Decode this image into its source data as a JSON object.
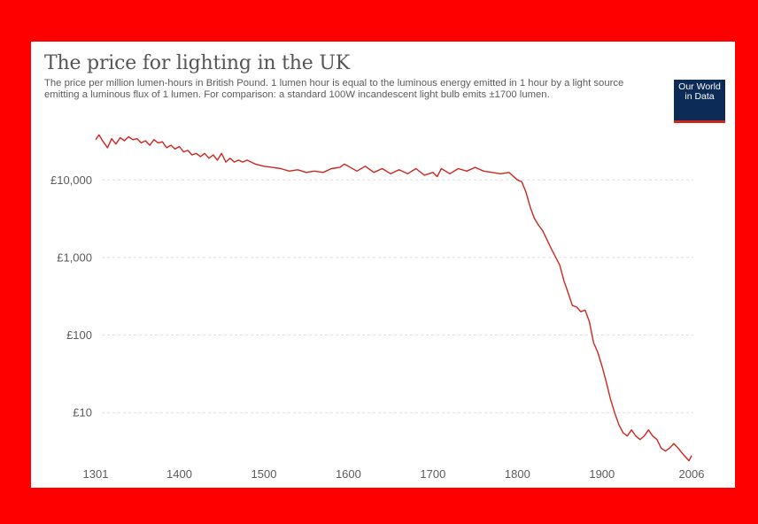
{
  "logo": {
    "line1": "Our World",
    "line2": "in Data"
  },
  "chart_data": {
    "type": "line",
    "title": "The price for lighting in the UK",
    "subtitle": "The price per million lumen-hours in British Pound. 1 lumen hour is equal to the luminous energy emitted in 1 hour by a light source emitting a luminous flux of 1 lumen. For comparison: a standard 100W incandescent light bulb emits ±1700 lumen.",
    "xlabel": "",
    "ylabel": "",
    "y_scale": "log",
    "xlim": [
      1301,
      2006
    ],
    "ylim": [
      2.5,
      50000
    ],
    "x_ticks": [
      1301,
      1400,
      1500,
      1600,
      1700,
      1800,
      1900,
      2006
    ],
    "y_ticks": [
      {
        "value": 10,
        "label": "£10"
      },
      {
        "value": 100,
        "label": "£100"
      },
      {
        "value": 1000,
        "label": "£1,000"
      },
      {
        "value": 10000,
        "label": "£10,000"
      }
    ],
    "grid": "horizontal-dashed",
    "line_color": "#ce261e",
    "series": [
      {
        "name": "",
        "x": [
          1301,
          1305,
          1310,
          1315,
          1320,
          1325,
          1330,
          1335,
          1340,
          1345,
          1350,
          1355,
          1360,
          1365,
          1370,
          1375,
          1380,
          1385,
          1390,
          1395,
          1400,
          1405,
          1410,
          1415,
          1420,
          1425,
          1430,
          1435,
          1440,
          1445,
          1450,
          1455,
          1460,
          1465,
          1470,
          1475,
          1480,
          1490,
          1500,
          1510,
          1520,
          1530,
          1540,
          1550,
          1560,
          1570,
          1580,
          1590,
          1595,
          1600,
          1610,
          1620,
          1630,
          1640,
          1650,
          1660,
          1670,
          1680,
          1690,
          1700,
          1705,
          1710,
          1720,
          1730,
          1740,
          1750,
          1760,
          1770,
          1780,
          1790,
          1800,
          1805,
          1810,
          1815,
          1820,
          1825,
          1830,
          1840,
          1850,
          1855,
          1860,
          1865,
          1870,
          1875,
          1880,
          1885,
          1890,
          1895,
          1900,
          1905,
          1910,
          1915,
          1920,
          1925,
          1930,
          1935,
          1940,
          1945,
          1950,
          1955,
          1960,
          1965,
          1970,
          1975,
          1980,
          1985,
          1990,
          1995,
          2000,
          2003,
          2006
        ],
        "values": [
          33000,
          38000,
          31000,
          26000,
          34000,
          29000,
          35000,
          32000,
          36000,
          33000,
          34000,
          30000,
          32000,
          28000,
          33000,
          30000,
          31000,
          26000,
          28000,
          25000,
          27000,
          23000,
          24000,
          21000,
          22000,
          20000,
          22000,
          19000,
          21000,
          18000,
          22000,
          17000,
          19000,
          17000,
          18000,
          17000,
          18000,
          16000,
          15000,
          14500,
          14000,
          13000,
          13500,
          12500,
          13000,
          12500,
          14000,
          14500,
          16000,
          15000,
          13000,
          15000,
          12500,
          14000,
          12000,
          13500,
          12000,
          14000,
          11500,
          12500,
          11000,
          14000,
          12000,
          14000,
          13000,
          14500,
          13000,
          12500,
          12000,
          12500,
          10000,
          9500,
          7000,
          4500,
          3200,
          2600,
          2200,
          1300,
          800,
          500,
          350,
          240,
          230,
          200,
          210,
          150,
          80,
          60,
          40,
          25,
          15,
          10,
          7,
          5.5,
          5,
          6,
          5,
          4.5,
          5,
          6,
          5,
          4.5,
          3.5,
          3.2,
          3.5,
          4,
          3.5,
          3,
          2.6,
          2.4,
          2.8
        ]
      }
    ]
  }
}
